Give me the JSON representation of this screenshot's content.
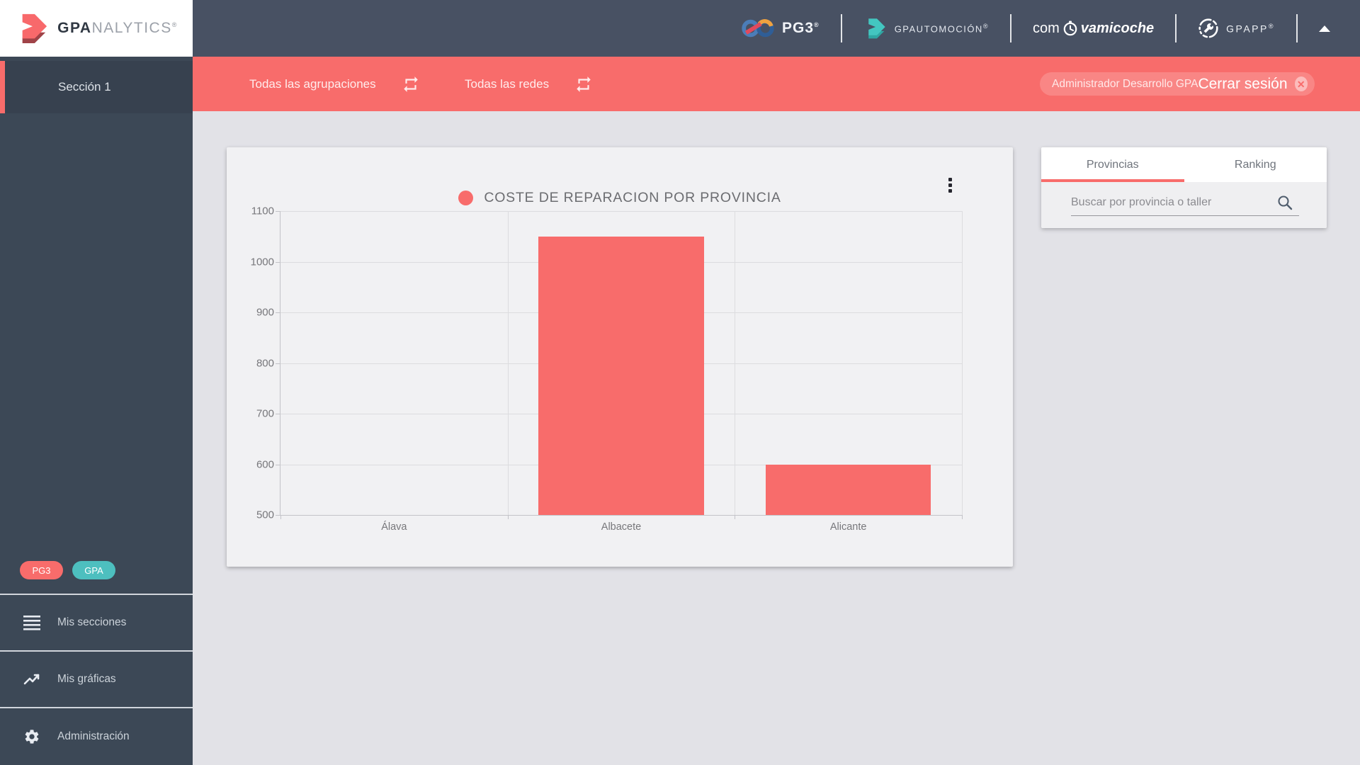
{
  "header": {
    "brand": {
      "bold": "GPA",
      "rest": "NALYTICS",
      "reg": "®"
    },
    "logos": {
      "pg3": {
        "label": "PG3",
        "reg": "®"
      },
      "gpautomocion": {
        "label": "GPAUTOMOCIÓN",
        "reg": "®"
      },
      "comvamicoche": {
        "pre": "com",
        "post": "vamicoche"
      },
      "gpapp": {
        "label": "GPAPP",
        "reg": "®"
      }
    }
  },
  "sidebar": {
    "section_label": "Sección 1",
    "badges": [
      {
        "label": "PG3",
        "color": "#f86c6b"
      },
      {
        "label": "GPA",
        "color": "#4dbfbf"
      }
    ],
    "menu": [
      {
        "label": "Mis secciones",
        "icon": "list-icon"
      },
      {
        "label": "Mis gráficas",
        "icon": "line-chart-icon"
      },
      {
        "label": "Administración",
        "icon": "gear-icon"
      }
    ]
  },
  "toolbar": {
    "filters": [
      {
        "label": "Todas las agrupaciones",
        "icon": "swap-icon"
      },
      {
        "label": "Todas las redes",
        "icon": "swap-icon"
      }
    ],
    "user": {
      "name": "Administrador Desarrollo GPA",
      "logout_label": "Cerrar sesión",
      "logout_icon": "close-circle-icon"
    }
  },
  "chart_data": {
    "type": "bar",
    "title": "COSTE DE REPARACION POR PROVINCIA",
    "categories": [
      "Álava",
      "Albacete",
      "Alicante"
    ],
    "values": [
      null,
      1050,
      599
    ],
    "ylim": [
      500,
      1100
    ],
    "yticks": [
      500,
      600,
      700,
      800,
      900,
      1000,
      1100
    ],
    "xlabel": "",
    "ylabel": "",
    "grid": true,
    "legend_position": "top",
    "bar_color": "#f86c6b",
    "legend_dot_color": "#f86c6b",
    "bar_band_ratio": 0.727
  },
  "panel": {
    "tabs": [
      {
        "label": "Provincias",
        "active": true
      },
      {
        "label": "Ranking",
        "active": false
      }
    ],
    "search": {
      "value": "",
      "placeholder": "Buscar por provincia o taller"
    }
  },
  "colors": {
    "accent_red": "#f86c6b",
    "accent_teal": "#4dbfbf",
    "header_bg": "#485163",
    "sidebar_bg": "#3c4856",
    "page_bg": "#e2e2e7",
    "card_bg": "#f1f1f3"
  }
}
